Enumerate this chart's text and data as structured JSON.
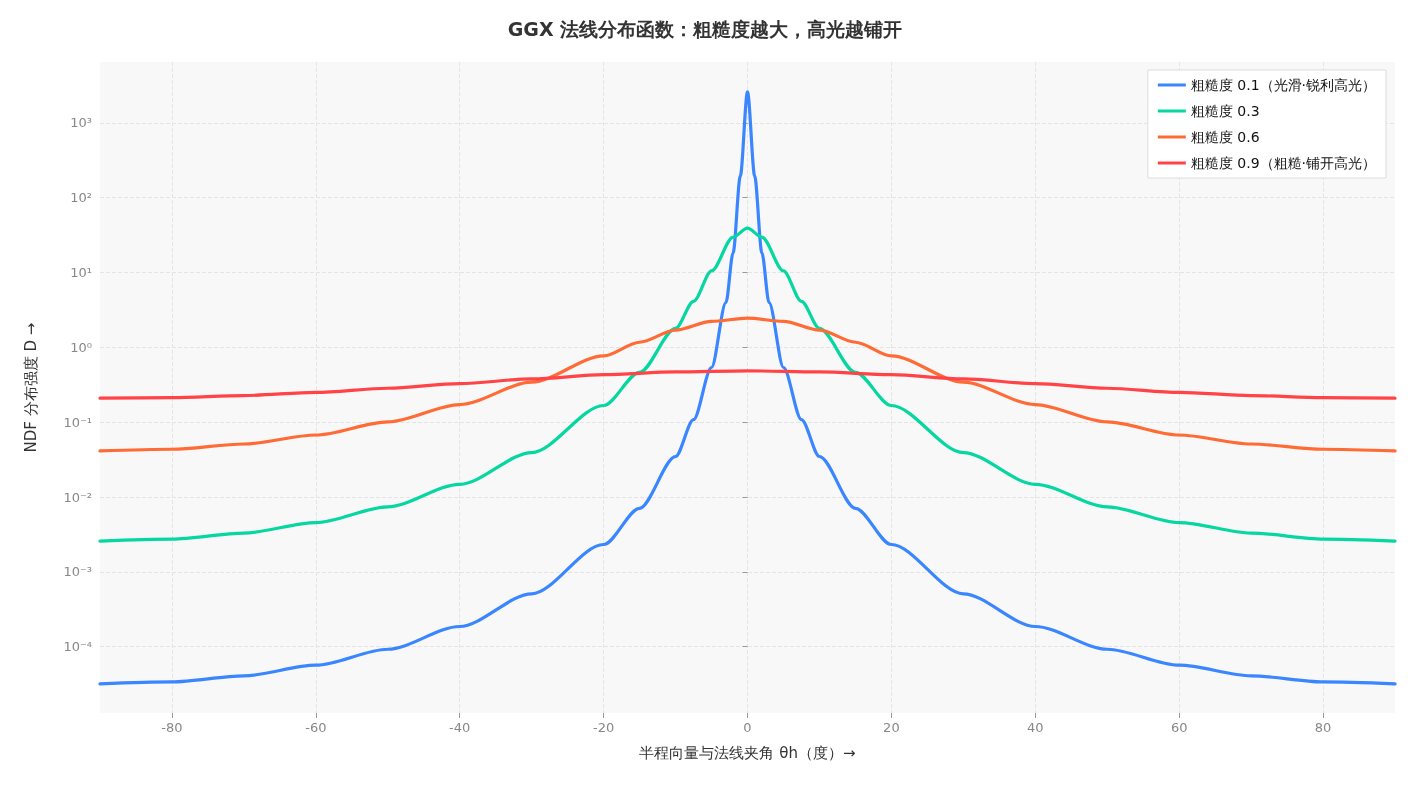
{
  "chart_data": {
    "type": "line",
    "title": "GGX 法线分布函数：粗糙度越大，高光越铺开",
    "xlabel": "半程向量与法线夹角 θh（度）→",
    "ylabel": "NDF 分布强度 D →",
    "log": "y",
    "grid": true,
    "legend": "top right",
    "marker": "none",
    "line_style": "solid",
    "xlim": [
      -90,
      90
    ],
    "xticks": [
      -80,
      -60,
      -40,
      -20,
      0,
      20,
      40,
      60,
      80
    ],
    "ylim": [
      1.3e-05,
      6500
    ],
    "yticks": [
      {
        "value": 0.0001,
        "label": "10⁻⁴"
      },
      {
        "value": 0.001,
        "label": "10⁻³"
      },
      {
        "value": 0.01,
        "label": "10⁻²"
      },
      {
        "value": 0.1,
        "label": "10⁻¹"
      },
      {
        "value": 1,
        "label": "10⁰"
      },
      {
        "value": 10,
        "label": "10¹"
      },
      {
        "value": 100,
        "label": "10²"
      },
      {
        "value": 1000,
        "label": "10³"
      }
    ],
    "series": [
      {
        "name": "粗糙度 0.1（光滑·锐利高光）",
        "color": "#3a86ff",
        "x": [
          -90,
          -80,
          -70,
          -60,
          -50,
          -40,
          -30,
          -20,
          -15,
          -10,
          -7.5,
          -5,
          -3,
          -2,
          -1,
          0,
          1,
          2,
          3,
          5,
          7.5,
          10,
          15,
          20,
          30,
          40,
          50,
          60,
          70,
          80,
          90
        ],
        "values": [
          3.18e-05,
          3.38e-05,
          4.08e-05,
          5.66e-05,
          9.24e-05,
          0.000186,
          0.000509,
          0.00232,
          0.00707,
          0.0348,
          0.108,
          0.538,
          3.95,
          18.3,
          194,
          2600,
          194,
          18.3,
          3.95,
          0.538,
          0.108,
          0.0348,
          0.00707,
          0.00232,
          0.000509,
          0.000186,
          9.24e-05,
          5.66e-05,
          4.08e-05,
          3.38e-05,
          3.18e-05
        ]
      },
      {
        "name": "粗糙度 0.3",
        "color": "#06d6a0",
        "x": [
          -90,
          -80,
          -70,
          -60,
          -50,
          -40,
          -30,
          -20,
          -15,
          -10,
          -7.5,
          -5,
          -2,
          0,
          2,
          5,
          7.5,
          10,
          15,
          20,
          30,
          40,
          50,
          60,
          70,
          80,
          90
        ],
        "values": [
          0.00258,
          0.00274,
          0.0033,
          0.00456,
          0.0074,
          0.0148,
          0.0393,
          0.167,
          0.464,
          1.79,
          4.12,
          10.5,
          29.7,
          39.3,
          29.7,
          10.5,
          4.12,
          1.79,
          0.464,
          0.167,
          0.0393,
          0.0148,
          0.0074,
          0.00456,
          0.0033,
          0.00274,
          0.00258
        ]
      },
      {
        "name": "粗糙度 0.6",
        "color": "#ff6b35",
        "x": [
          -90,
          -80,
          -70,
          -60,
          -50,
          -40,
          -30,
          -20,
          -15,
          -10,
          -5,
          0,
          5,
          10,
          15,
          20,
          30,
          40,
          50,
          60,
          70,
          80,
          90
        ],
        "values": [
          0.0413,
          0.0435,
          0.0511,
          0.0674,
          0.101,
          0.172,
          0.342,
          0.77,
          1.17,
          1.7,
          2.22,
          2.46,
          2.22,
          1.7,
          1.17,
          0.77,
          0.342,
          0.172,
          0.101,
          0.0674,
          0.0511,
          0.0435,
          0.0413
        ]
      },
      {
        "name": "粗糙度 0.9（粗糙·铺开高光）",
        "color": "#ff4347",
        "x": [
          -90,
          -80,
          -70,
          -60,
          -50,
          -40,
          -30,
          -20,
          -10,
          0,
          10,
          20,
          30,
          40,
          50,
          60,
          70,
          80,
          90
        ],
        "values": [
          0.209,
          0.213,
          0.227,
          0.25,
          0.284,
          0.328,
          0.379,
          0.431,
          0.47,
          0.485,
          0.47,
          0.431,
          0.379,
          0.328,
          0.284,
          0.25,
          0.227,
          0.213,
          0.209
        ]
      }
    ]
  }
}
